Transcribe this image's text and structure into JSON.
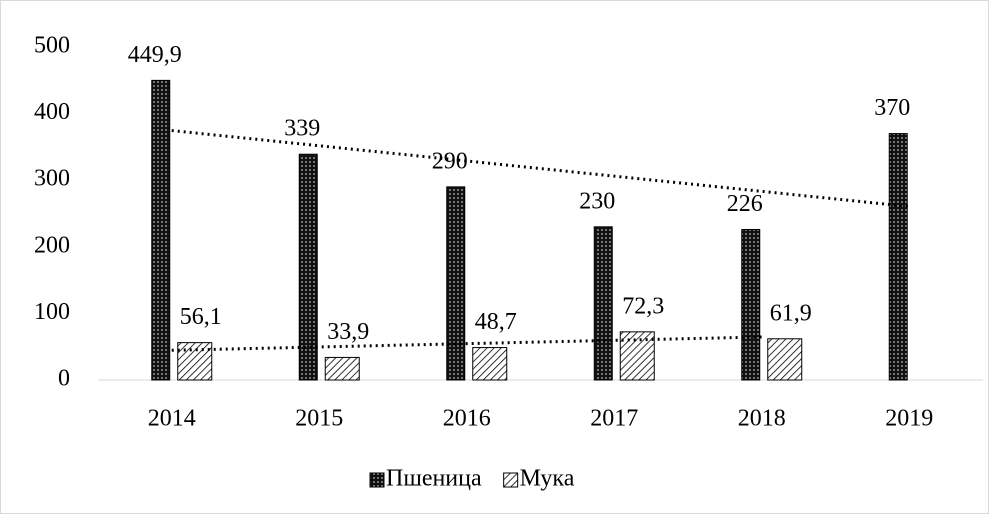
{
  "chart_data": {
    "type": "bar",
    "categories": [
      "2014",
      "2015",
      "2016",
      "2017",
      "2018",
      "2019"
    ],
    "series": [
      {
        "name": "Пшеница",
        "color": "#000000",
        "pattern": "dots",
        "values": [
          449.9,
          339,
          290,
          230,
          226,
          370
        ],
        "value_labels": [
          "449,9",
          "339",
          "290",
          "230",
          "226",
          "370"
        ]
      },
      {
        "name": "Мука",
        "color": "#000000",
        "pattern": "hatch",
        "values": [
          56.1,
          33.9,
          48.7,
          72.3,
          61.9,
          null
        ],
        "value_labels": [
          "56,1",
          "33,9",
          "48,7",
          "72,3",
          "61,9",
          null
        ]
      }
    ],
    "trendline": "linear",
    "ylim": [
      0,
      500
    ],
    "yticks": [
      0,
      100,
      200,
      300,
      400,
      500
    ],
    "legend": "bottom"
  }
}
